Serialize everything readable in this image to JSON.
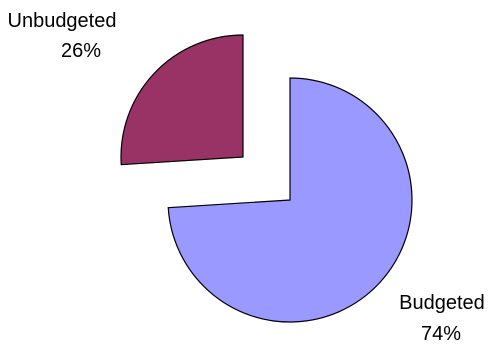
{
  "chart_data": {
    "type": "pie",
    "exploded": true,
    "legend": "none",
    "slices": [
      {
        "label": "Budgeted",
        "value": 74,
        "value_label": "74%",
        "color": "#9999FF"
      },
      {
        "label": "Unbudgeted",
        "value": 26,
        "value_label": "26%",
        "color": "#993366"
      }
    ]
  }
}
